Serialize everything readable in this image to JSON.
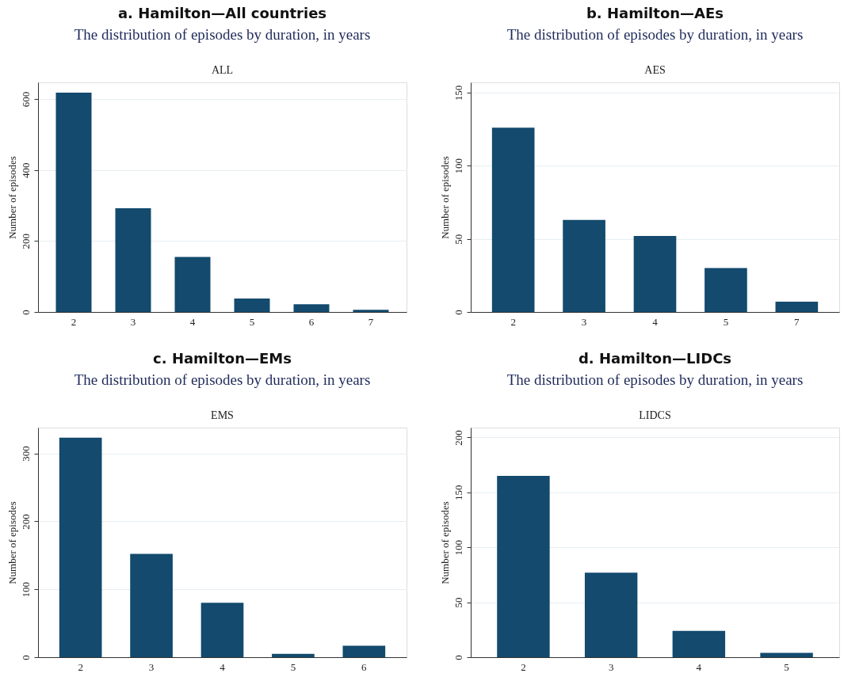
{
  "chart_data": [
    {
      "type": "bar",
      "title": "a. Hamilton—All countries",
      "subtitle": "The distribution of episodes by duration, in years",
      "annotations": [
        "ALL"
      ],
      "ylabel": "Number of episodes",
      "categories": [
        "2",
        "3",
        "4",
        "5",
        "6",
        "7"
      ],
      "values": [
        618,
        292,
        155,
        38,
        22,
        6
      ],
      "color": "#134a6e",
      "ylim": [
        0,
        647
      ],
      "yticks": [
        0,
        200,
        400,
        600
      ],
      "grid": "y"
    },
    {
      "type": "bar",
      "title": "b. Hamilton—AEs",
      "subtitle": "The distribution of episodes by duration, in years",
      "annotations": [
        "AES"
      ],
      "ylabel": "Number of episodes",
      "categories": [
        "2",
        "3",
        "4",
        "5",
        "7"
      ],
      "values": [
        126,
        63,
        52,
        30,
        7
      ],
      "color": "#134a6e",
      "ylim": [
        0,
        157
      ],
      "yticks": [
        0,
        50,
        100,
        150
      ],
      "grid": "y"
    },
    {
      "type": "bar",
      "title": "c. Hamilton—EMs",
      "subtitle": "The distribution of episodes by duration, in years",
      "annotations": [
        "EMS"
      ],
      "ylabel": "Number of episodes",
      "categories": [
        "2",
        "3",
        "4",
        "5",
        "6"
      ],
      "values": [
        323,
        152,
        80,
        5,
        17
      ],
      "color": "#134a6e",
      "ylim": [
        0,
        338
      ],
      "yticks": [
        0,
        100,
        200,
        300
      ],
      "grid": "y"
    },
    {
      "type": "bar",
      "title": "d. Hamilton—LIDCs",
      "subtitle": "The distribution of episodes by duration, in years",
      "annotations": [
        "LIDCS"
      ],
      "ylabel": "Number of episodes",
      "categories": [
        "2",
        "3",
        "4",
        "5"
      ],
      "values": [
        165,
        77,
        24,
        4
      ],
      "color": "#134a6e",
      "ylim": [
        0,
        209
      ],
      "yticks": [
        0,
        50,
        100,
        150,
        200
      ],
      "grid": "y"
    }
  ]
}
